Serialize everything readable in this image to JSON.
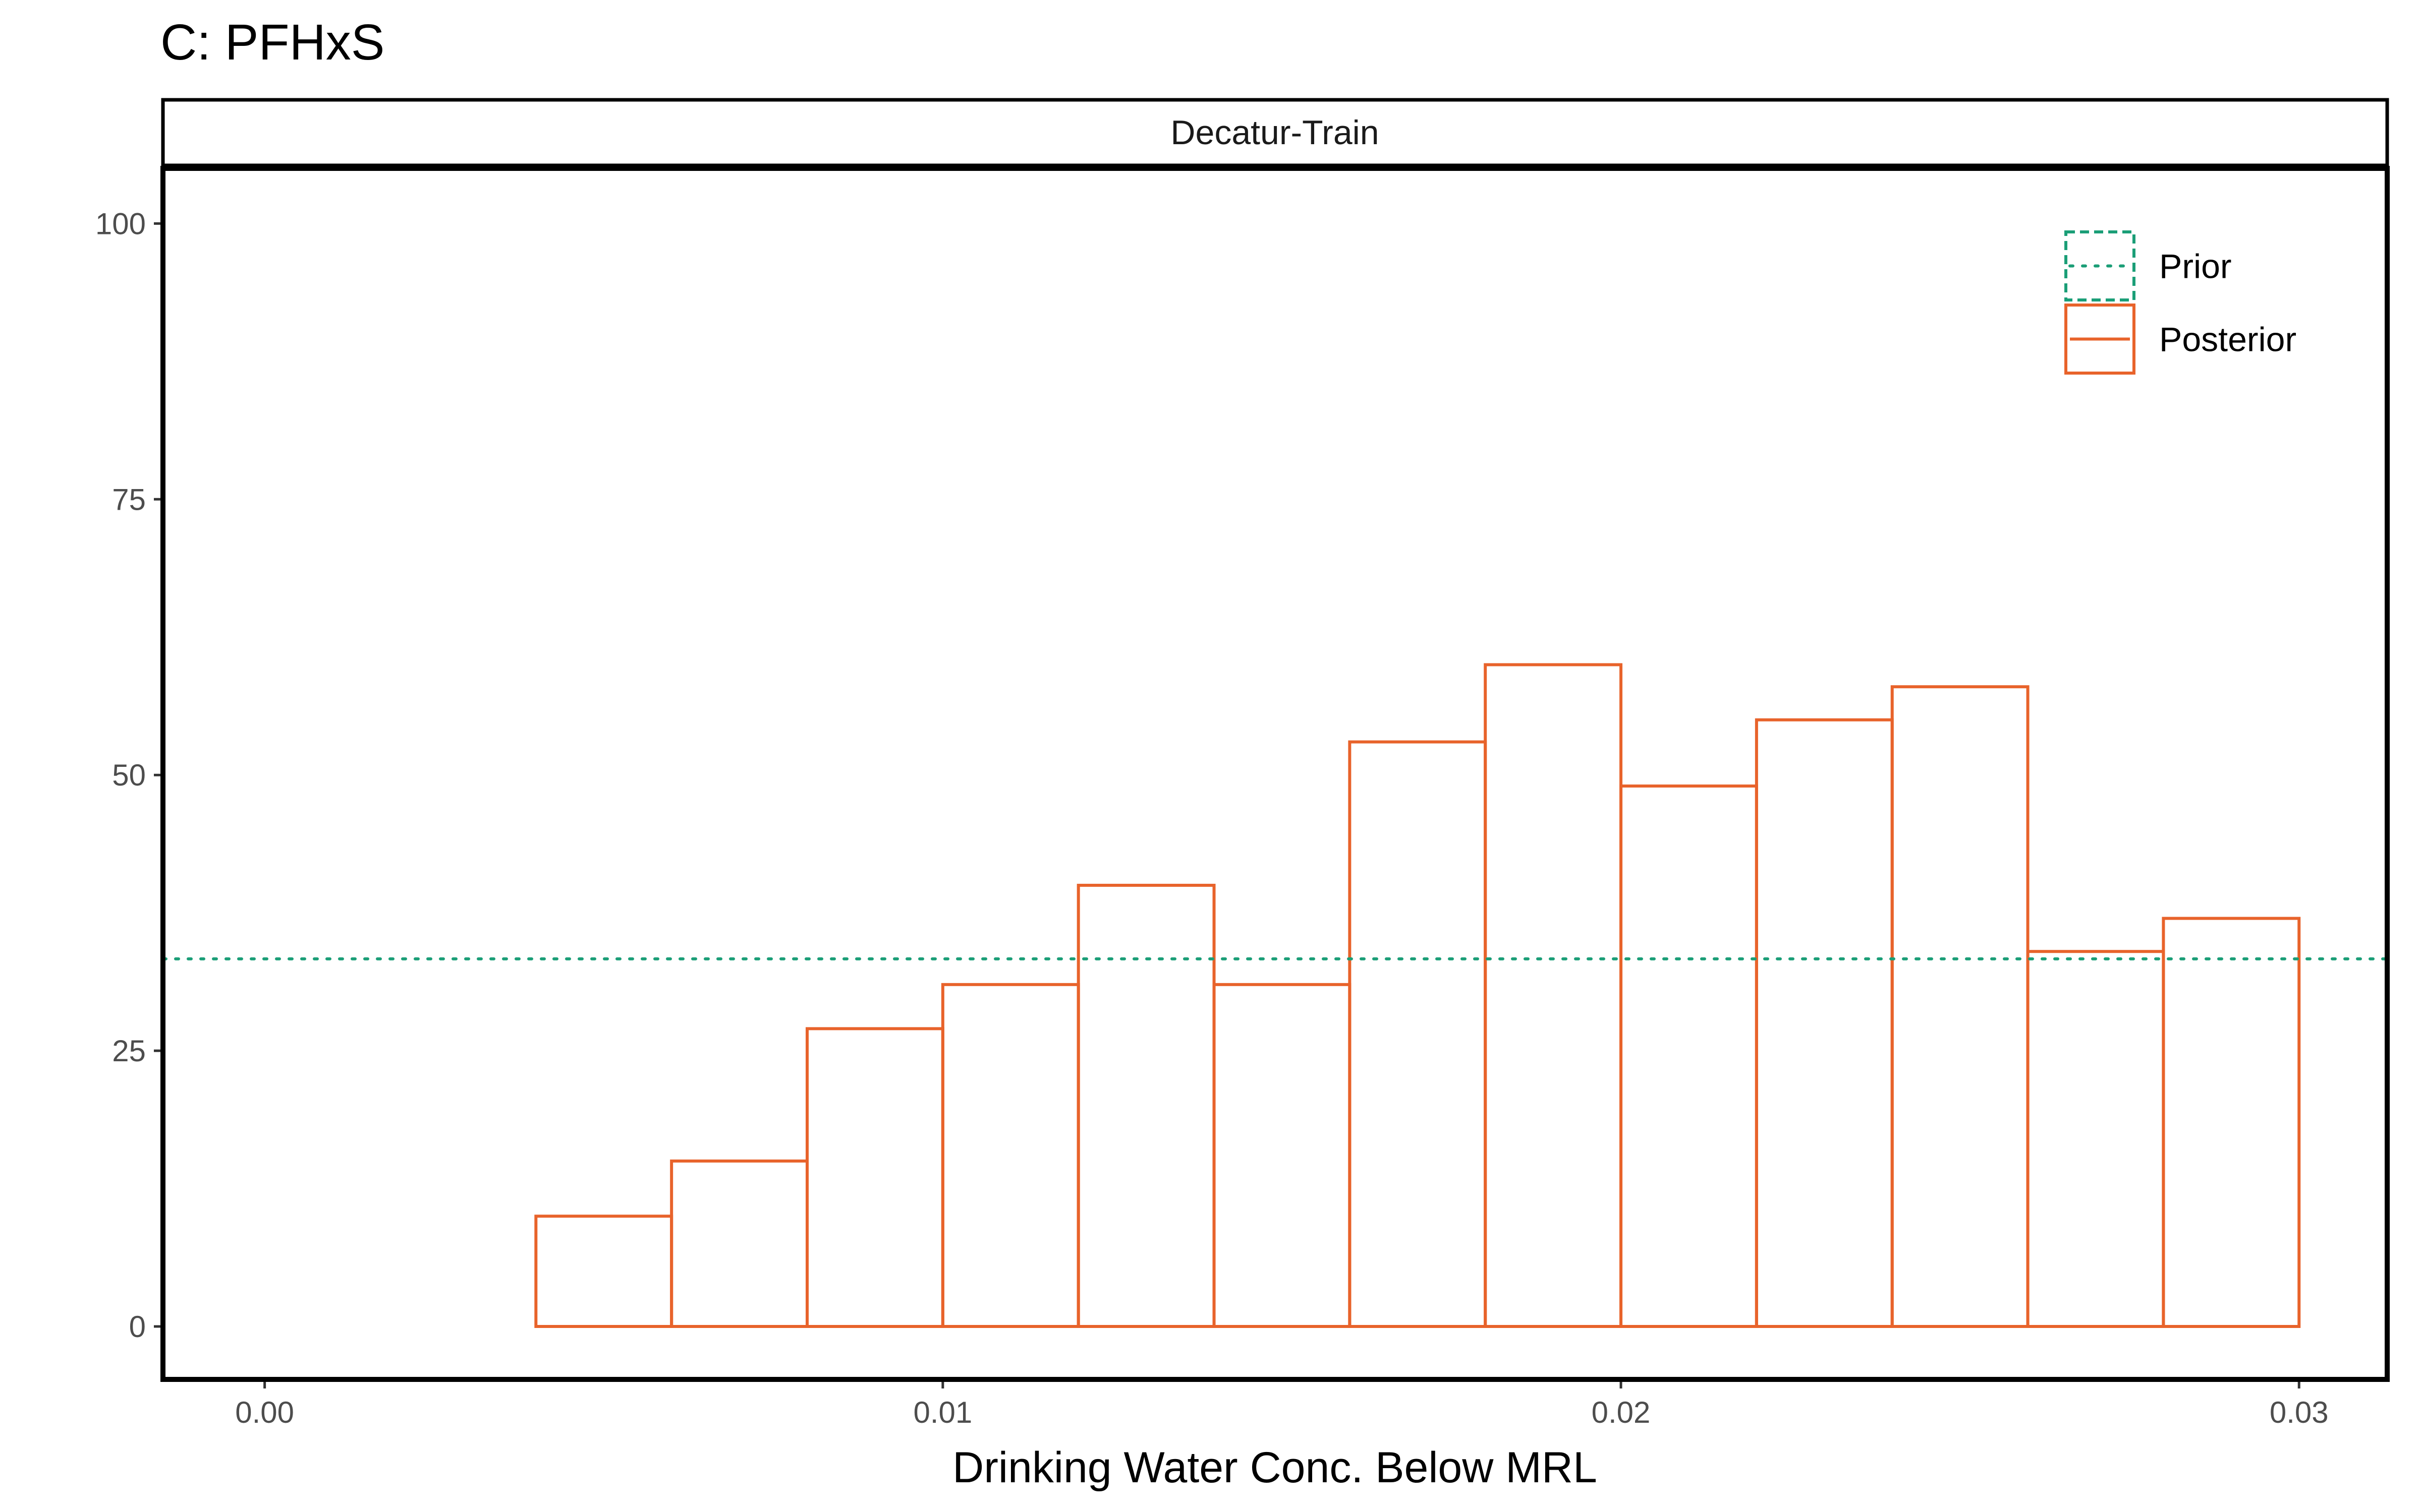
{
  "chart_data": {
    "type": "bar",
    "title": "C: PFHxS",
    "facet_label": "Decatur-Train",
    "xlabel": "Drinking Water Conc. Below MRL",
    "ylabel": "",
    "xlim": [
      -0.0015,
      0.0313
    ],
    "ylim": [
      -4.8,
      105
    ],
    "x_ticks": [
      0.0,
      0.01,
      0.02,
      0.03
    ],
    "x_tick_labels": [
      "0.00",
      "0.01",
      "0.02",
      "0.03"
    ],
    "y_ticks": [
      0,
      25,
      50,
      75,
      100
    ],
    "y_tick_labels": [
      "0",
      "25",
      "50",
      "75",
      "100"
    ],
    "grid": false,
    "legend_position": "top-right",
    "series": [
      {
        "name": "Prior",
        "kind": "hline",
        "style": "dotted",
        "color": "#1b9e77",
        "y": 33.33
      },
      {
        "name": "Posterior",
        "kind": "histogram",
        "style": "solid",
        "color": "#e8632b",
        "bin_width": 0.002,
        "bin_starts": [
          0.0,
          0.002,
          0.004,
          0.006,
          0.008,
          0.01,
          0.012,
          0.014,
          0.016,
          0.018,
          0.02,
          0.022,
          0.024,
          0.026,
          0.028
        ],
        "values": [
          0,
          0,
          10,
          15,
          27,
          31,
          40,
          31,
          53,
          60,
          49,
          55,
          58,
          34,
          37
        ]
      }
    ]
  }
}
